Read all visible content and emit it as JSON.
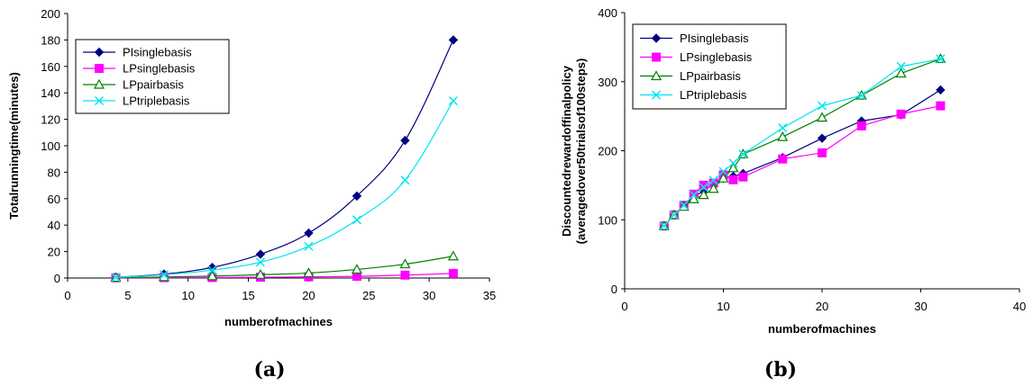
{
  "chart_data": [
    {
      "type": "line",
      "panel_label": "(a)",
      "xlabel": "numberofmachines",
      "ylabel": "Totalrunningtime(minutes)",
      "xlim": [
        0,
        35
      ],
      "ylim": [
        0,
        200
      ],
      "xticks": [
        0,
        5,
        10,
        15,
        20,
        25,
        30,
        35
      ],
      "yticks": [
        0,
        20,
        40,
        60,
        80,
        100,
        120,
        140,
        160,
        180,
        200
      ],
      "legend_position": "top-left",
      "grid": false,
      "series": [
        {
          "name": "PIsinglebasis",
          "color": "#000080",
          "marker": "diamond",
          "x": [
            4,
            8,
            12,
            16,
            20,
            24,
            28,
            32
          ],
          "y": [
            0.5,
            3,
            8,
            18,
            34,
            62,
            104,
            180
          ]
        },
        {
          "name": "LPsinglebasis",
          "color": "#ff00ff",
          "marker": "square",
          "x": [
            4,
            8,
            12,
            16,
            20,
            24,
            28,
            32
          ],
          "y": [
            0.2,
            0.3,
            0.4,
            0.6,
            0.9,
            1.3,
            2.2,
            3.5
          ]
        },
        {
          "name": "LPpairbasis",
          "color": "#008000",
          "marker": "triangle",
          "x": [
            4,
            8,
            12,
            16,
            20,
            24,
            28,
            32
          ],
          "y": [
            0.3,
            0.8,
            1.5,
            2.5,
            3.8,
            6.5,
            10.5,
            16.5
          ]
        },
        {
          "name": "LPtriplebasis",
          "color": "#00e5ee",
          "marker": "x",
          "x": [
            4,
            8,
            12,
            16,
            20,
            24,
            28,
            32
          ],
          "y": [
            0.5,
            2.5,
            6,
            12,
            24,
            44,
            74,
            134
          ]
        }
      ]
    },
    {
      "type": "line",
      "panel_label": "(b)",
      "xlabel": "numberofmachines",
      "ylabel": "Discountedrewardoffinalpolicy",
      "ylabel2": "(averagedover50trialsof100steps)",
      "xlim": [
        0,
        40
      ],
      "ylim": [
        0,
        400
      ],
      "xticks": [
        0,
        10,
        20,
        30,
        40
      ],
      "yticks": [
        0,
        100,
        200,
        300,
        400
      ],
      "legend_position": "top-left",
      "grid": false,
      "series": [
        {
          "name": "PIsinglebasis",
          "color": "#000080",
          "marker": "diamond",
          "x": [
            4,
            5,
            6,
            7,
            8,
            9,
            10,
            11,
            12,
            16,
            20,
            24,
            28,
            32
          ],
          "y": [
            91,
            107,
            120,
            133,
            142,
            152,
            160,
            163,
            167,
            190,
            218,
            243,
            252,
            288
          ]
        },
        {
          "name": "LPsinglebasis",
          "color": "#ff00ff",
          "marker": "square",
          "x": [
            4,
            5,
            6,
            7,
            8,
            9,
            10,
            11,
            12,
            16,
            20,
            24,
            28,
            32
          ],
          "y": [
            91,
            107,
            121,
            137,
            150,
            153,
            165,
            158,
            162,
            188,
            197,
            236,
            253,
            265
          ]
        },
        {
          "name": "LPpairbasis",
          "color": "#008000",
          "marker": "triangle",
          "x": [
            4,
            5,
            6,
            7,
            8,
            9,
            10,
            11,
            12,
            16,
            20,
            24,
            28,
            32
          ],
          "y": [
            91,
            107,
            119,
            130,
            136,
            145,
            160,
            175,
            195,
            220,
            248,
            280,
            312,
            333
          ]
        },
        {
          "name": "LPtriplebasis",
          "color": "#00e5ee",
          "marker": "x",
          "x": [
            4,
            5,
            6,
            7,
            8,
            9,
            10,
            11,
            12,
            16,
            20,
            24,
            28,
            32
          ],
          "y": [
            91,
            107,
            121,
            136,
            147,
            157,
            170,
            182,
            195,
            233,
            265,
            280,
            322,
            333
          ]
        }
      ]
    }
  ]
}
